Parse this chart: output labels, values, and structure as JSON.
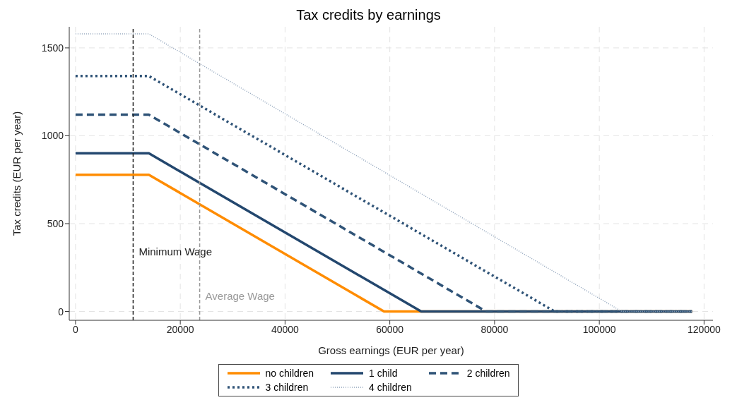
{
  "chart_data": {
    "type": "line",
    "title": "Tax credits by earnings",
    "xlabel": "Gross earnings (EUR per year)",
    "ylabel": "Tax credits (EUR per year)",
    "xlim": [
      -1200,
      121700
    ],
    "xticks": [
      0,
      20000,
      40000,
      60000,
      80000,
      100000,
      120000
    ],
    "ylim": [
      -50,
      1620
    ],
    "yticks": [
      0,
      500,
      1000,
      1500
    ],
    "grid": true,
    "legend": "bottom",
    "marker": "none",
    "series": [
      {
        "name": "no children",
        "color": "#ff8c00",
        "line_style": "solid",
        "x": [
          0,
          14000,
          58900,
          117700
        ],
        "values": [
          778,
          778,
          0,
          0
        ]
      },
      {
        "name": "1 child",
        "color": "#23476e",
        "line_style": "solid",
        "x": [
          0,
          14000,
          66000,
          117700
        ],
        "values": [
          900,
          900,
          0,
          0
        ]
      },
      {
        "name": "2 children",
        "color": "#2f5377",
        "line_style": "dashed",
        "x": [
          0,
          14000,
          78400,
          117700
        ],
        "values": [
          1120,
          1120,
          0,
          0
        ]
      },
      {
        "name": "3 children",
        "color": "#2f5377",
        "line_style": "dotted",
        "x": [
          0,
          14000,
          91500,
          117700
        ],
        "values": [
          1340,
          1340,
          0,
          0
        ]
      },
      {
        "name": "4 children",
        "color": "#8fa3bb",
        "line_style": "dotted",
        "x": [
          0,
          14000,
          104300,
          117700
        ],
        "values": [
          1580,
          1580,
          0,
          0
        ]
      }
    ],
    "ref_lines": [
      {
        "axis": "x",
        "value": 11000,
        "label": "Minimum Wage",
        "color": "#222222",
        "line_style": "dashed"
      },
      {
        "axis": "x",
        "value": 23700,
        "label": "Average Wage",
        "color": "#999999",
        "line_style": "dashed"
      }
    ]
  }
}
